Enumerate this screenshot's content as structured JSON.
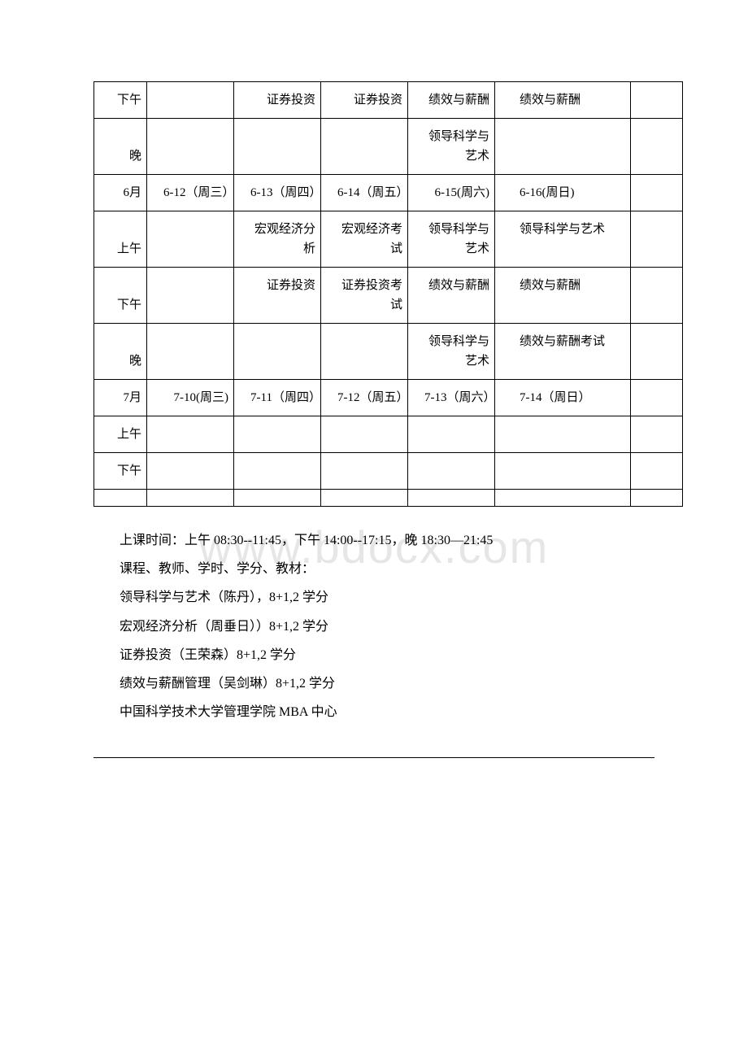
{
  "watermark": "www.bdocx.com",
  "table": {
    "rows": [
      {
        "c1": "下午",
        "c2": "",
        "c3": "证券投资",
        "c4": "证券投资",
        "c5": "绩效与薪酬",
        "c6": "绩效与薪酬",
        "c7": ""
      },
      {
        "c1": "晚",
        "c2": "",
        "c3": "",
        "c4": "",
        "c5": "领导科学与艺术",
        "c6": "",
        "c7": ""
      },
      {
        "c1": "6月",
        "c2": "6-12（周三）",
        "c3": "6-13（周四）",
        "c4": "6-14（周五）",
        "c5": "6-15(周六)",
        "c6": "6-16(周日)",
        "c7": ""
      },
      {
        "c1": "上午",
        "c2": "",
        "c3": "宏观经济分析",
        "c4": "宏观经济考试",
        "c5": "领导科学与艺术",
        "c6": "领导科学与艺术",
        "c7": ""
      },
      {
        "c1": "下午",
        "c2": "",
        "c3": "证券投资",
        "c4": "证券投资考试",
        "c5": "绩效与薪酬",
        "c6": "绩效与薪酬",
        "c7": ""
      },
      {
        "c1": "晚",
        "c2": "",
        "c3": "",
        "c4": "",
        "c5": "领导科学与艺术",
        "c6": "绩效与薪酬考试",
        "c7": ""
      },
      {
        "c1": "7月",
        "c2": "7-10(周三)",
        "c3": "7-11（周四）",
        "c4": "7-12（周五）",
        "c5": "7-13（周六）",
        "c6": "7-14（周日）",
        "c7": ""
      },
      {
        "c1": "上午",
        "c2": "",
        "c3": "",
        "c4": "",
        "c5": "",
        "c6": "",
        "c7": ""
      },
      {
        "c1": "下午",
        "c2": "",
        "c3": "",
        "c4": "",
        "c5": "",
        "c6": "",
        "c7": ""
      },
      {
        "c1": "",
        "c2": "",
        "c3": "",
        "c4": "",
        "c5": "",
        "c6": "",
        "c7": ""
      }
    ]
  },
  "paragraphs": [
    "上课时间：上午 08:30--11:45，下午 14:00--17:15，晚 18:30—21:45",
    "课程、教师、学时、学分、教材：",
    "领导科学与艺术（陈丹），8+1,2 学分",
    "宏观经济分析（周垂日））8+1,2 学分",
    "证券投资（王荣森）8+1,2 学分",
    "绩效与薪酬管理（吴剑琳）8+1,2 学分",
    " 中国科学技术大学管理学院 MBA 中心"
  ]
}
